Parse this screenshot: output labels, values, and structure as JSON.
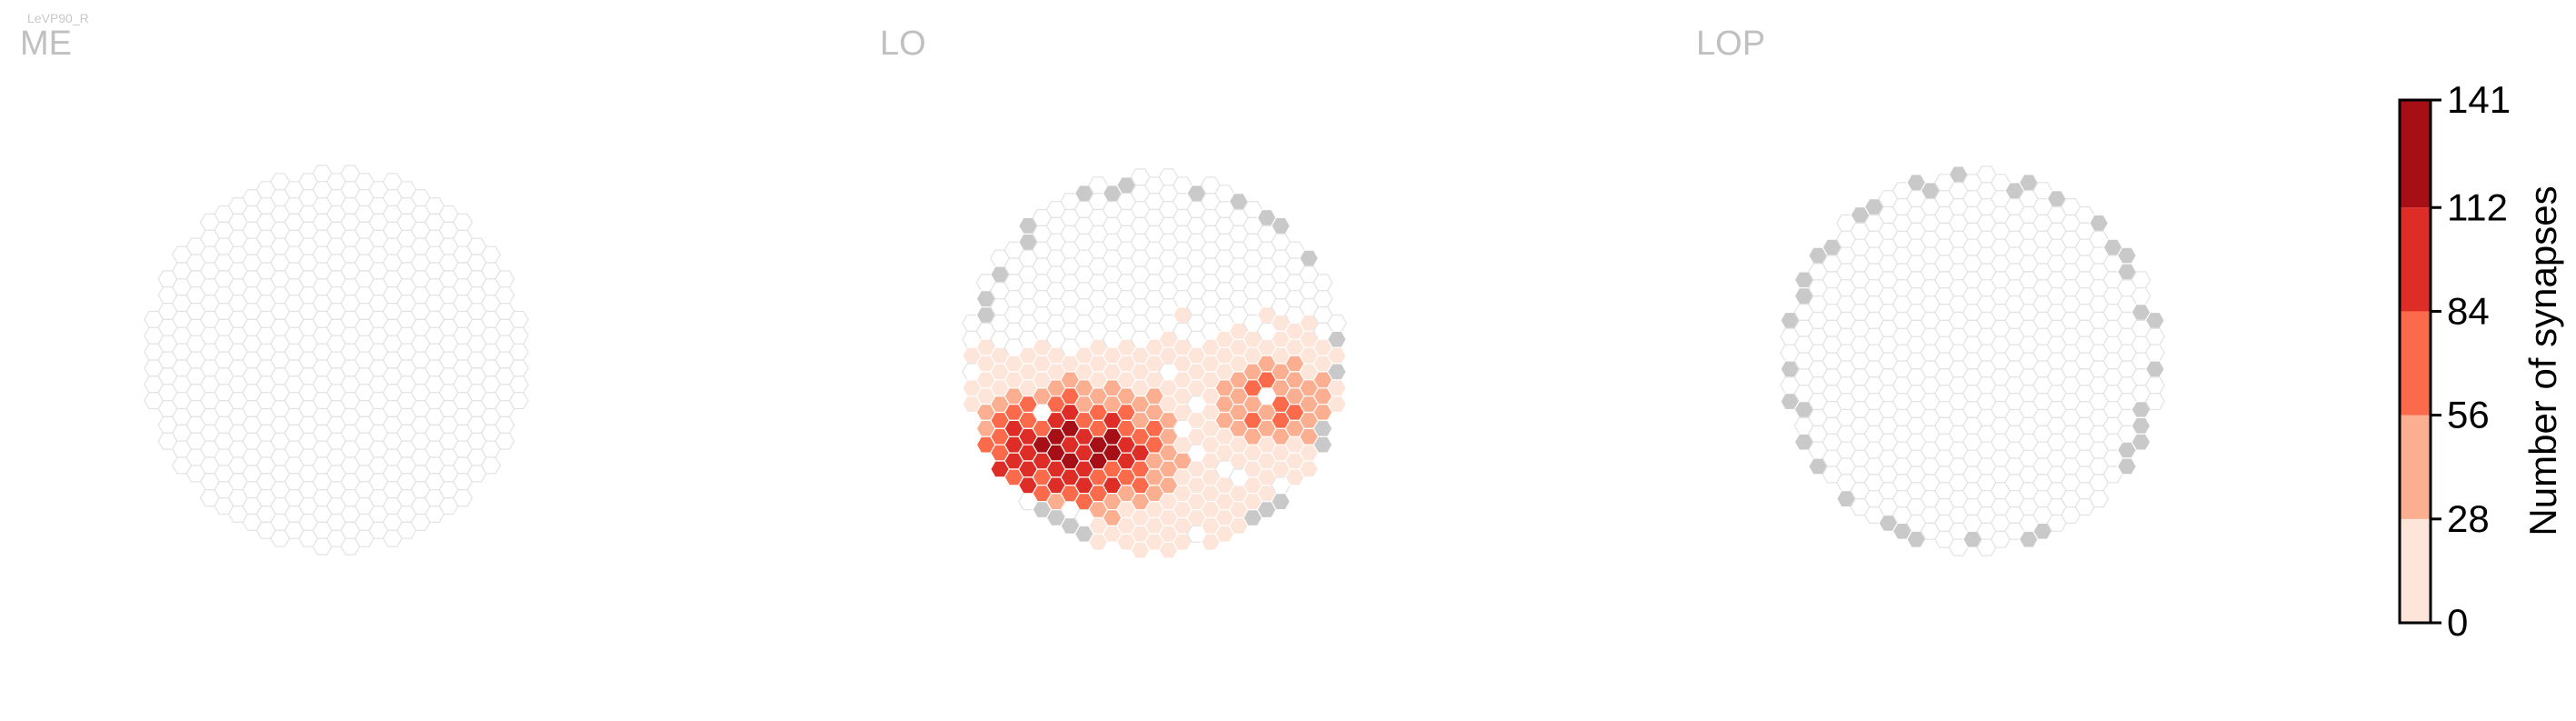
{
  "figure_label": "LeVP90_R",
  "chart_data": {
    "type": "heatmap",
    "hexagonal": true,
    "panels": [
      {
        "name": "ME",
        "title": "ME",
        "synapse_range": [
          0,
          0
        ]
      },
      {
        "name": "LO",
        "title": "LO",
        "synapse_range": [
          0,
          141
        ],
        "hotspot": "lower-left quadrant",
        "max_value": 141
      },
      {
        "name": "LOP",
        "title": "LOP",
        "synapse_range": [
          0,
          0
        ]
      }
    ],
    "colorbar": {
      "label": "Number of synapses",
      "ticks": [
        "0",
        "28",
        "56",
        "84",
        "112",
        "141"
      ],
      "bins": [
        {
          "from": 0,
          "to": 28,
          "color": "#fee5d9"
        },
        {
          "from": 28,
          "to": 56,
          "color": "#fcae91"
        },
        {
          "from": 56,
          "to": 84,
          "color": "#fb6a4a"
        },
        {
          "from": 84,
          "to": 112,
          "color": "#de2d26"
        },
        {
          "from": 112,
          "to": 141,
          "color": "#a50f15"
        }
      ]
    },
    "colors": {
      "empty_cell_stroke": "#e3e3e3",
      "outside_column_fill": "#c9c9c9",
      "title_color": "#c0c0c0"
    }
  }
}
